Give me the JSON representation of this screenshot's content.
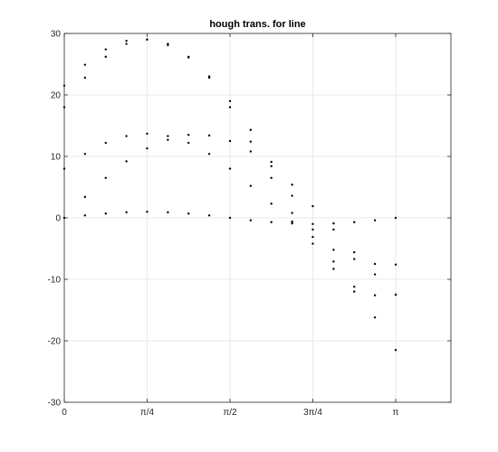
{
  "chart_data": {
    "type": "scatter",
    "title": "hough trans. for line",
    "xlabel": "",
    "ylabel": "",
    "xlim": [
      0,
      3.66519
    ],
    "ylim": [
      -30,
      30
    ],
    "x_ticks": [
      {
        "value": 0,
        "label": "0"
      },
      {
        "value": 0.785398,
        "label": "π/4"
      },
      {
        "value": 1.570796,
        "label": "π/2"
      },
      {
        "value": 2.356194,
        "label": "3π/4"
      },
      {
        "value": 3.141593,
        "label": "π"
      }
    ],
    "y_ticks": [
      {
        "value": -30,
        "label": "-30"
      },
      {
        "value": -20,
        "label": "-20"
      },
      {
        "value": -10,
        "label": "-10"
      },
      {
        "value": 0,
        "label": "0"
      },
      {
        "value": 10,
        "label": "10"
      },
      {
        "value": 20,
        "label": "20"
      },
      {
        "value": 30,
        "label": "30"
      }
    ],
    "grid": true,
    "legend": "none",
    "marker_color": "#000000",
    "series": [
      {
        "x": [
          0,
          0.196,
          0.393,
          0.589,
          0.785,
          0.982,
          1.178,
          1.374,
          1.571,
          1.767,
          1.963,
          2.16,
          2.356,
          2.553,
          2.749,
          2.945,
          3.142
        ],
        "y": [
          18,
          22.8,
          26.2,
          28.3,
          29.0,
          28.3,
          26.2,
          22.8,
          18,
          12.4,
          6.5,
          0.8,
          -4.2,
          -8.3,
          -11.2,
          -12.6,
          -12.5
        ]
      },
      {
        "x": [
          0,
          0.196,
          0.393,
          0.589,
          0.785,
          0.982,
          1.178,
          1.374,
          1.571,
          1.767,
          1.963,
          2.16,
          2.356,
          2.553,
          2.749,
          2.945,
          3.142
        ],
        "y": [
          8,
          10.4,
          12.2,
          13.3,
          13.7,
          13.3,
          12.2,
          10.4,
          8,
          5.2,
          2.3,
          -0.6,
          -3.1,
          -5.2,
          -6.7,
          -7.5,
          -7.6
        ]
      },
      {
        "x": [
          0,
          0.196,
          0.393,
          0.589,
          0.785,
          0.982,
          1.178,
          1.374,
          1.571,
          1.767,
          1.963,
          2.16,
          2.356,
          2.553,
          2.749,
          2.945,
          3.142
        ],
        "y": [
          0,
          0.4,
          0.7,
          0.9,
          1.0,
          0.9,
          0.7,
          0.4,
          0,
          -0.4,
          -0.7,
          -0.9,
          -1.0,
          -0.9,
          -0.7,
          -0.4,
          0
        ]
      },
      {
        "x": [
          0,
          0.196,
          0.393,
          0.589,
          0.785,
          0.982,
          1.178,
          1.374,
          1.571,
          1.767,
          1.963,
          2.16,
          2.356,
          2.553,
          2.749,
          2.945,
          3.142
        ],
        "y": [
          0,
          3.4,
          6.5,
          9.2,
          11.3,
          12.7,
          13.5,
          13.4,
          12.5,
          10.8,
          8.4,
          5.4,
          1.9,
          -1.9,
          -5.6,
          -9.2,
          -12.5
        ]
      },
      {
        "x": [
          0,
          0.196,
          0.393,
          0.589,
          0.785,
          0.982,
          1.178,
          1.374,
          1.571,
          1.767,
          1.963,
          2.16,
          2.356,
          2.553,
          2.749,
          2.945,
          3.142
        ],
        "y": [
          21.5,
          24.9,
          27.4,
          28.8,
          29.0,
          28.1,
          26.1,
          23.0,
          19.0,
          14.3,
          9.1,
          3.6,
          -1.9,
          -7.1,
          -12.0,
          -16.2,
          -21.5
        ]
      }
    ]
  }
}
